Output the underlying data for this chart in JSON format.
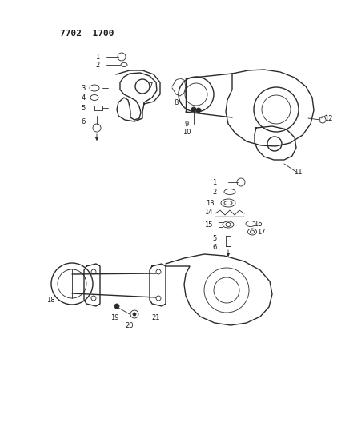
{
  "title_text": "7702  1700",
  "bg": "#ffffff",
  "lc": "#2a2a2a",
  "tc": "#1a1a1a",
  "lw_main": 1.0,
  "lw_thin": 0.6,
  "label_fs": 6.0
}
